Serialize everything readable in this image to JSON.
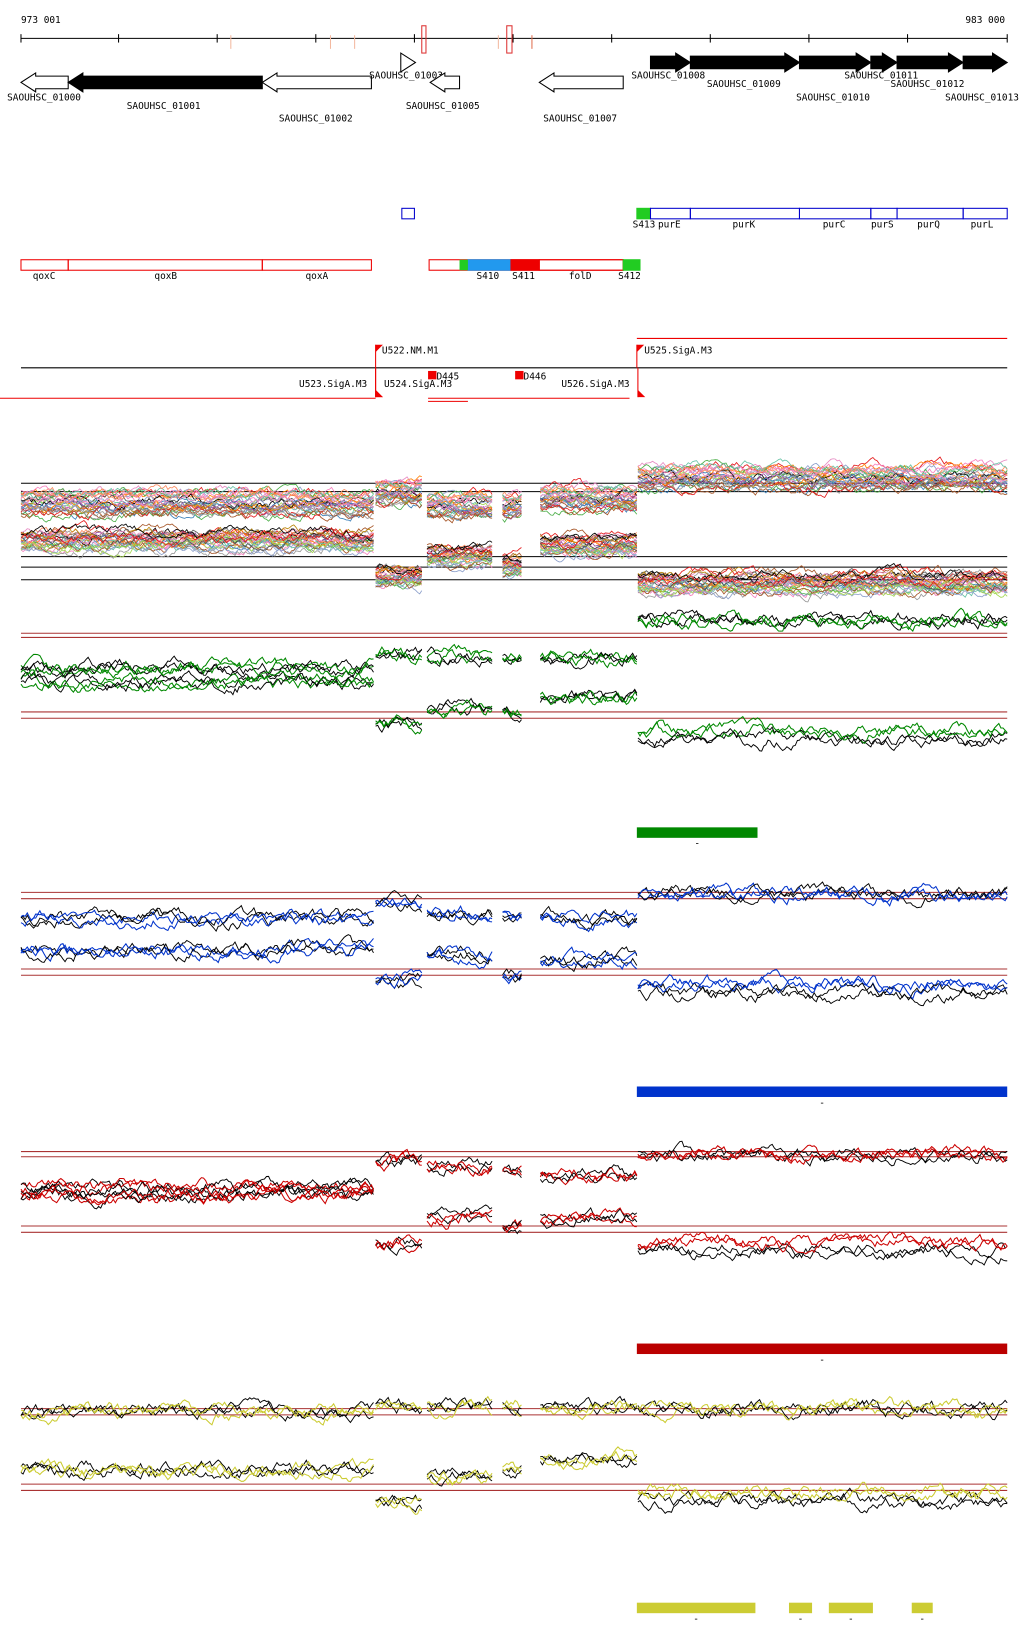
{
  "scale": {
    "start": "973 001",
    "end": "983 000"
  },
  "genes": [
    "SAOUHSC_01000",
    "SAOUHSC_01001",
    "SAOUHSC_01002",
    "SAOUHSC_01003",
    "SAOUHSC_01005",
    "SAOUHSC_01007",
    "SAOUHSC_01008",
    "SAOUHSC_01009",
    "SAOUHSC_01010",
    "SAOUHSC_01011",
    "SAOUHSC_01012",
    "SAOUHSC_01013"
  ],
  "blue_row": [
    "S413",
    "purE",
    "purK",
    "purC",
    "purS",
    "purQ",
    "purL"
  ],
  "red_row": [
    "qoxC",
    "qoxB",
    "qoxA",
    "S410",
    "S411",
    "folD",
    "S412"
  ],
  "promoters": [
    "U522.NM.M1",
    "U525.SigA.M3",
    "U523.SigA.M3",
    "U524.SigA.M3",
    "D445",
    "D446",
    "U526.SigA.M3"
  ],
  "tracks": [
    {
      "markers": []
    },
    {
      "markers": [
        "-"
      ]
    },
    {
      "markers": [
        "-"
      ]
    },
    {
      "markers": [
        "-"
      ]
    },
    {
      "markers": [
        "-",
        "-",
        "-",
        "-"
      ]
    }
  ]
}
